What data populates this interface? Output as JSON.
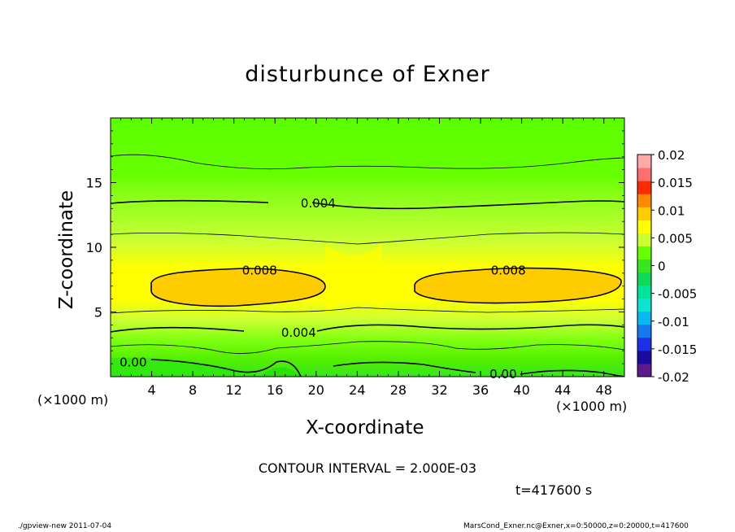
{
  "chart_data": {
    "type": "contour",
    "title": "disturbunce of Exner",
    "xlabel": "X-coordinate",
    "ylabel": "Z-coordinate",
    "x_unit_label": "(×1000 m)",
    "xlim": [
      0,
      50
    ],
    "ylim": [
      0,
      20
    ],
    "x_ticks": [
      4,
      8,
      12,
      16,
      20,
      24,
      28,
      32,
      36,
      40,
      44,
      48
    ],
    "y_ticks": [
      5,
      10,
      15
    ],
    "colorbar": {
      "range": [
        -0.02,
        0.02
      ],
      "tick_labels": [
        "0.02",
        "0.015",
        "0.01",
        "0.005",
        "0",
        "-0.005",
        "-0.01",
        "-0.015",
        "-0.02"
      ],
      "tick_values": [
        0.02,
        0.015,
        0.01,
        0.005,
        0,
        -0.005,
        -0.01,
        -0.015,
        -0.02
      ],
      "step": 0.0025,
      "colors": [
        "#5c1a8c",
        "#1c0aa0",
        "#1d31e4",
        "#1677f0",
        "#08b8f0",
        "#0ee3d2",
        "#00e39a",
        "#11d85a",
        "#36e61e",
        "#66ff00",
        "#ccff33",
        "#ffff00",
        "#ffcc00",
        "#ff8800",
        "#ff2a00",
        "#ff6f6f",
        "#ffa8a8"
      ]
    },
    "contour_interval_text": "CONTOUR INTERVAL = 2.000E-03",
    "contour_labels": [
      {
        "text": "0.004",
        "x": 20.2,
        "z": 13.4
      },
      {
        "text": "0.008",
        "x": 14.5,
        "z": 8.2
      },
      {
        "text": "0.008",
        "x": 38.7,
        "z": 8.2
      },
      {
        "text": "0.004",
        "x": 18.3,
        "z": 3.4
      },
      {
        "text": "0.00",
        "x": 2.2,
        "z": 1.1
      },
      {
        "text": "0.00",
        "x": 38.2,
        "z": 0.2
      }
    ],
    "time_text": "t=417600 s"
  },
  "footer": {
    "left": "./gpview-new   2011-07-04",
    "right": "MarsCond_Exner.nc@Exner,x=0:50000,z=0:20000,t=417600"
  }
}
